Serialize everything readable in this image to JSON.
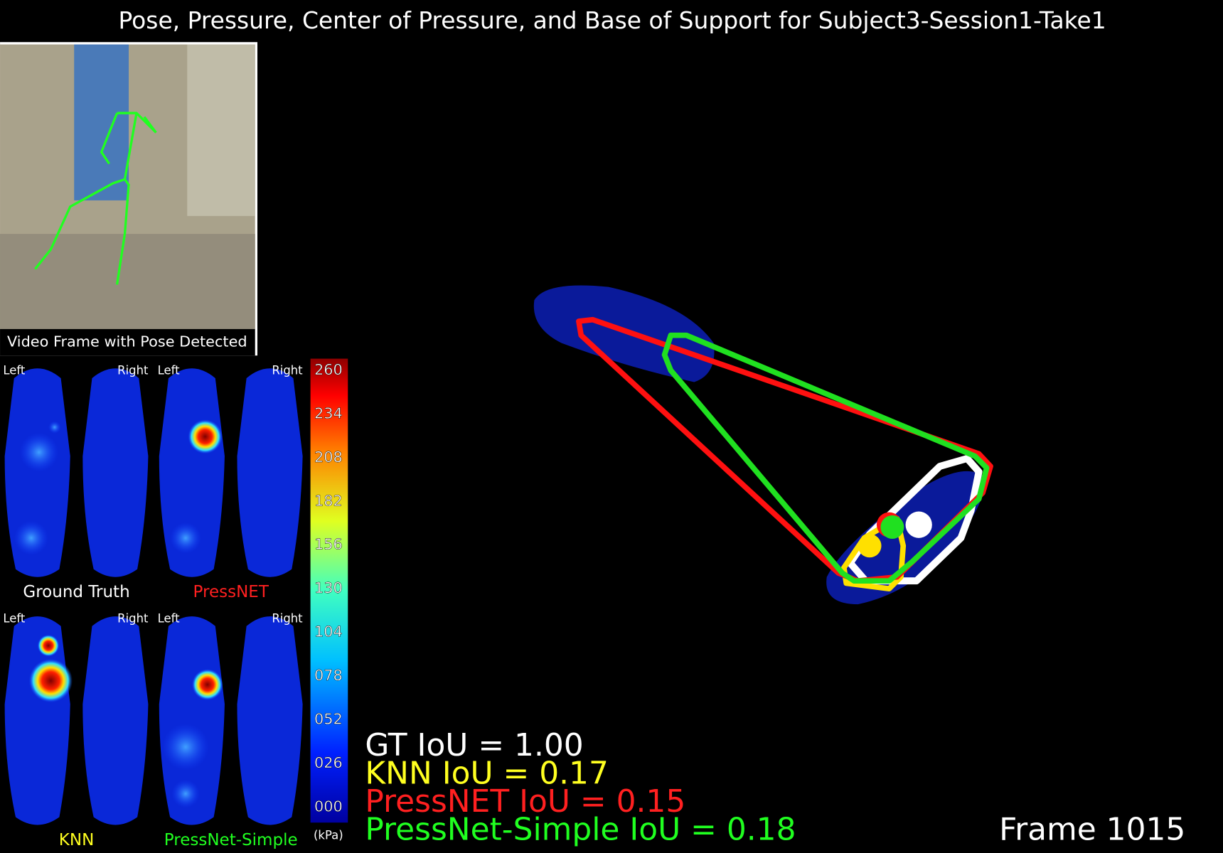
{
  "title": "Pose, Pressure, Center of Pressure, and Base of Support for Subject3-Session1-Take1",
  "video_caption": "Video Frame with Pose Detected",
  "panels": [
    {
      "name": "Ground Truth",
      "color": "#ffffff",
      "left": "Left",
      "right": "Right"
    },
    {
      "name": "PressNET",
      "color": "#ff2020",
      "left": "Left",
      "right": "Right"
    },
    {
      "name": "KNN",
      "color": "#ffff20",
      "left": "Left",
      "right": "Right"
    },
    {
      "name": "PressNet-Simple",
      "color": "#20ff20",
      "left": "Left",
      "right": "Right"
    }
  ],
  "colorbar": {
    "ticks": [
      "260",
      "234",
      "208",
      "182",
      "156",
      "130",
      "104",
      "078",
      "052",
      "026",
      "000"
    ],
    "unit": "(kPa)"
  },
  "iou": [
    {
      "text": "GT IoU = 1.00",
      "color": "#ffffff"
    },
    {
      "text": "KNN IoU = 0.17",
      "color": "#ffff20"
    },
    {
      "text": "PressNET IoU = 0.15",
      "color": "#ff2020"
    },
    {
      "text": "PressNet-Simple IoU = 0.18",
      "color": "#20ff20"
    }
  ],
  "frame": "Frame 1015"
}
